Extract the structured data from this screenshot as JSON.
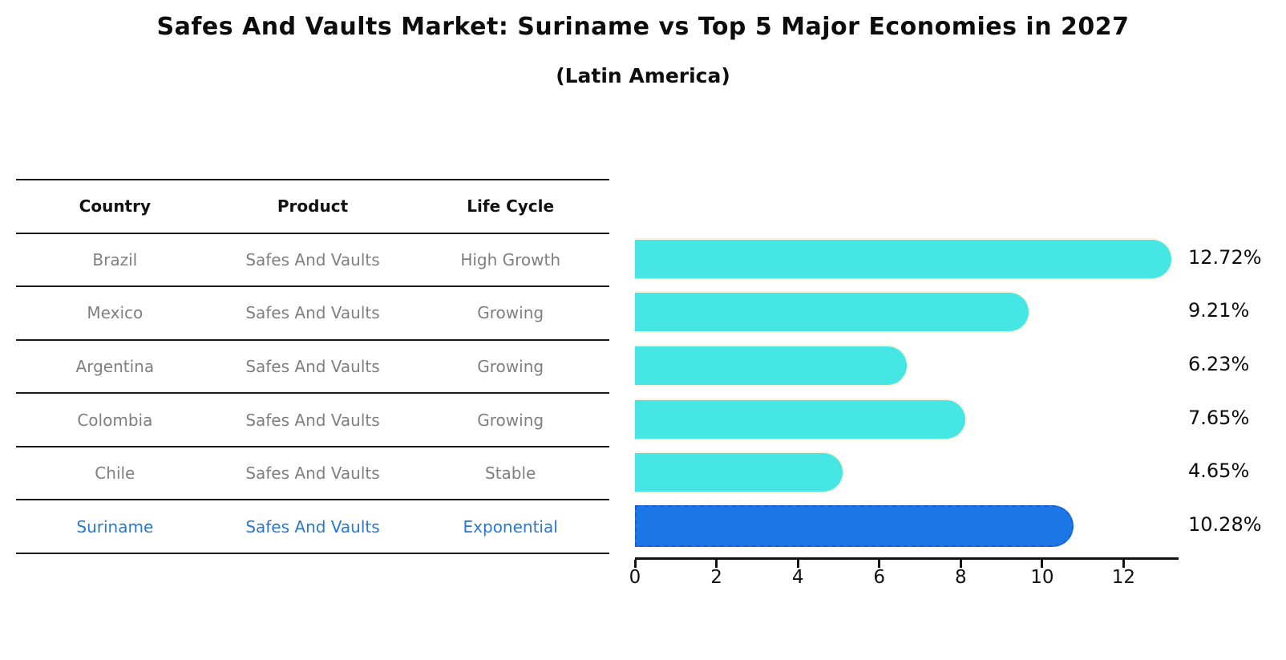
{
  "title": "Safes And Vaults Market: Suriname vs Top 5 Major Economies in 2027",
  "subtitle": "(Latin America)",
  "table": {
    "headers": [
      "Country",
      "Product",
      "Life Cycle"
    ],
    "rows": [
      {
        "country": "Brazil",
        "product": "Safes And Vaults",
        "life_cycle": "High Growth"
      },
      {
        "country": "Mexico",
        "product": "Safes And Vaults",
        "life_cycle": "Growing"
      },
      {
        "country": "Argentina",
        "product": "Safes And Vaults",
        "life_cycle": "Growing"
      },
      {
        "country": "Colombia",
        "product": "Safes And Vaults",
        "life_cycle": "Growing"
      },
      {
        "country": "Chile",
        "product": "Safes And Vaults",
        "life_cycle": "Stable"
      },
      {
        "country": "Suriname",
        "product": "Safes And Vaults",
        "life_cycle": "Exponential"
      }
    ],
    "highlight_row": "Suriname"
  },
  "chart_data": {
    "type": "bar",
    "orientation": "horizontal",
    "title": "Safes And Vaults Market: Suriname vs Top 5 Major Economies in 2027",
    "subtitle": "(Latin America)",
    "categories": [
      "Brazil",
      "Mexico",
      "Argentina",
      "Colombia",
      "Chile",
      "Suriname"
    ],
    "values": [
      12.72,
      9.21,
      6.23,
      7.65,
      4.65,
      10.28
    ],
    "value_labels": [
      "12.72%",
      "9.21%",
      "6.23%",
      "7.65%",
      "4.65%",
      "10.28%"
    ],
    "xlabel": "",
    "ylabel": "",
    "xticks": [
      0,
      2,
      4,
      6,
      8,
      10,
      12
    ],
    "xlim": [
      0,
      13.35
    ],
    "grid": false,
    "legend": false,
    "highlight_index": 5
  },
  "colors": {
    "bar": "#45E6E3",
    "bar_edge": "#FAF3DC",
    "highlight_bar": "#1B76E8",
    "highlight_bar_edge": "#1D5ECC",
    "highlight_text": "#2878CD",
    "cell_text": "#7f7f7f",
    "header_text": "#111111",
    "axis": "#111111"
  }
}
